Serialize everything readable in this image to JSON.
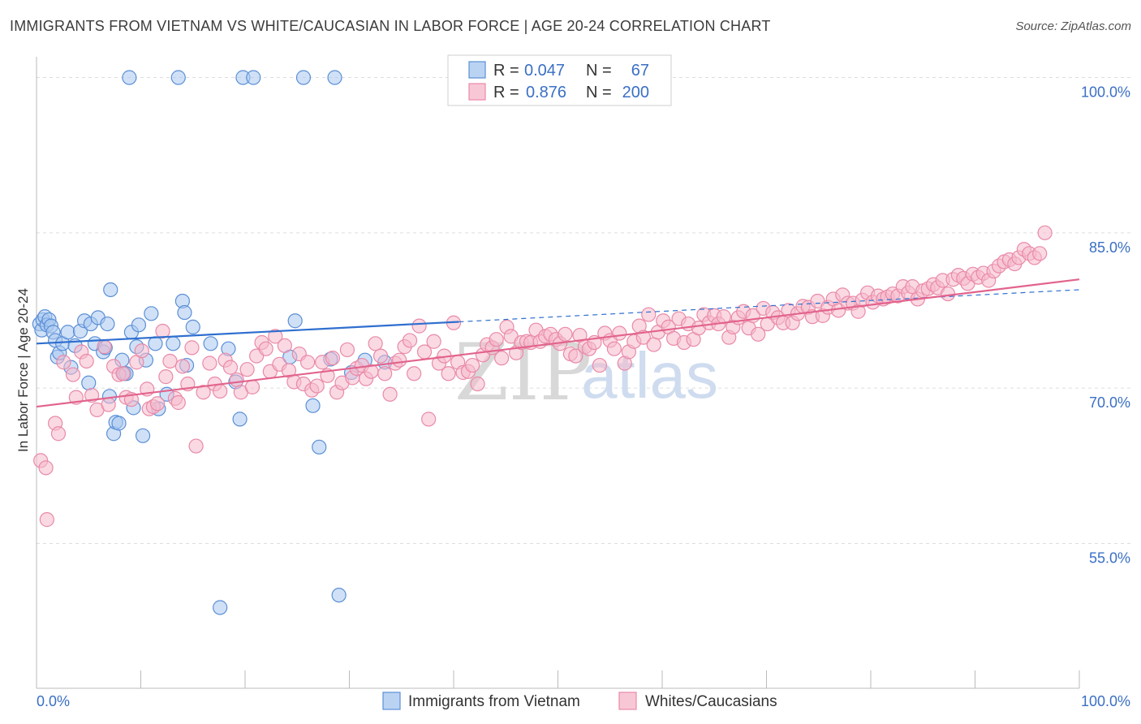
{
  "title": "IMMIGRANTS FROM VIETNAM VS WHITE/CAUCASIAN IN LABOR FORCE | AGE 20-24 CORRELATION CHART",
  "source": "Source: ZipAtlas.com",
  "watermark": {
    "zip": "ZIP",
    "atlas": "atlas"
  },
  "colors": {
    "blue_fill": "#aac8f0",
    "blue_stroke": "#5b8fd6",
    "blue_line": "#2f6fcf",
    "pink_fill": "#f6b9cc",
    "pink_stroke": "#e98aa8",
    "pink_line": "#e2638c",
    "grid": "#dddddd",
    "tick_label": "#3a6fc4"
  },
  "legend_box": {
    "rows": [
      {
        "r_label": "R =",
        "r_value": "0.047",
        "n_label": "N =",
        "n_value": "67"
      },
      {
        "r_label": "R =",
        "r_value": "0.876",
        "n_label": "N =",
        "n_value": "200"
      }
    ]
  },
  "bottom_legend": [
    "Immigrants from Vietnam",
    "Whites/Caucasians"
  ],
  "chart_data": {
    "type": "scatter",
    "ylabel": "In Labor Force | Age 20-24",
    "xlabel": "",
    "xlim": [
      0,
      100
    ],
    "ylim": [
      41,
      102
    ],
    "x_tick_labels": [
      {
        "v": 0,
        "label": "0.0%"
      },
      {
        "v": 100,
        "label": "100.0%"
      }
    ],
    "y_ticks": [
      {
        "v": 55,
        "label": "55.0%"
      },
      {
        "v": 70,
        "label": "70.0%"
      },
      {
        "v": 85,
        "label": "85.0%"
      },
      {
        "v": 100,
        "label": "100.0%"
      }
    ],
    "legend_position": "top-center",
    "grid": true,
    "series": [
      {
        "name": "Immigrants from Vietnam",
        "color": "blue",
        "trend": {
          "x0": 0,
          "y0": 74.3,
          "x1": 40.5,
          "y1": 76.4,
          "dashed_to_x": 100,
          "dashed_to_y": 79.5
        },
        "points": [
          [
            0.3,
            76.2
          ],
          [
            0.5,
            75.6
          ],
          [
            0.6,
            76.6
          ],
          [
            0.8,
            76.9
          ],
          [
            1.0,
            76.1
          ],
          [
            1.2,
            76.6
          ],
          [
            1.4,
            76.0
          ],
          [
            1.6,
            75.4
          ],
          [
            1.8,
            74.6
          ],
          [
            2.0,
            73.0
          ],
          [
            2.2,
            73.4
          ],
          [
            2.5,
            74.3
          ],
          [
            3.0,
            75.4
          ],
          [
            3.3,
            72.0
          ],
          [
            3.7,
            74.1
          ],
          [
            4.2,
            75.5
          ],
          [
            4.6,
            76.5
          ],
          [
            5.0,
            70.5
          ],
          [
            5.2,
            76.2
          ],
          [
            5.6,
            74.3
          ],
          [
            5.9,
            76.8
          ],
          [
            6.4,
            73.5
          ],
          [
            6.6,
            73.9
          ],
          [
            6.8,
            76.2
          ],
          [
            7.0,
            69.2
          ],
          [
            7.1,
            79.5
          ],
          [
            7.4,
            65.6
          ],
          [
            7.6,
            66.7
          ],
          [
            7.9,
            66.6
          ],
          [
            8.2,
            72.7
          ],
          [
            8.4,
            71.4
          ],
          [
            8.6,
            71.4
          ],
          [
            8.9,
            100.0
          ],
          [
            9.1,
            75.4
          ],
          [
            9.3,
            68.1
          ],
          [
            9.6,
            74.0
          ],
          [
            9.8,
            76.1
          ],
          [
            10.2,
            65.4
          ],
          [
            10.5,
            72.7
          ],
          [
            11.0,
            77.2
          ],
          [
            11.4,
            74.3
          ],
          [
            11.7,
            68.0
          ],
          [
            12.5,
            69.4
          ],
          [
            13.1,
            74.3
          ],
          [
            13.6,
            100.0
          ],
          [
            14.0,
            78.4
          ],
          [
            14.2,
            77.3
          ],
          [
            14.4,
            72.2
          ],
          [
            15.0,
            75.9
          ],
          [
            16.7,
            74.3
          ],
          [
            17.6,
            48.8
          ],
          [
            18.4,
            73.8
          ],
          [
            19.1,
            70.6
          ],
          [
            19.5,
            67.0
          ],
          [
            19.8,
            100.0
          ],
          [
            20.8,
            100.0
          ],
          [
            24.3,
            73.0
          ],
          [
            24.8,
            76.5
          ],
          [
            25.6,
            100.0
          ],
          [
            26.5,
            68.3
          ],
          [
            27.1,
            64.3
          ],
          [
            28.2,
            72.8
          ],
          [
            28.6,
            100.0
          ],
          [
            29.0,
            50.0
          ],
          [
            30.2,
            71.5
          ],
          [
            31.5,
            72.7
          ],
          [
            33.4,
            72.5
          ]
        ]
      },
      {
        "name": "Whites/Caucasians",
        "color": "pink",
        "trend": {
          "x0": 0,
          "y0": 68.2,
          "x1": 100,
          "y1": 80.5
        },
        "points": [
          [
            0.4,
            63.0
          ],
          [
            0.9,
            62.3
          ],
          [
            1.0,
            57.3
          ],
          [
            1.8,
            66.6
          ],
          [
            2.1,
            65.6
          ],
          [
            2.6,
            72.5
          ],
          [
            3.5,
            71.3
          ],
          [
            3.8,
            69.1
          ],
          [
            4.3,
            73.5
          ],
          [
            4.8,
            72.6
          ],
          [
            5.3,
            69.3
          ],
          [
            5.8,
            67.9
          ],
          [
            6.5,
            74.0
          ],
          [
            6.9,
            68.4
          ],
          [
            7.4,
            72.1
          ],
          [
            7.9,
            71.3
          ],
          [
            8.3,
            71.4
          ],
          [
            8.6,
            69.1
          ],
          [
            9.1,
            68.9
          ],
          [
            9.6,
            72.5
          ],
          [
            10.1,
            73.6
          ],
          [
            10.6,
            69.9
          ],
          [
            10.8,
            68.0
          ],
          [
            11.2,
            68.2
          ],
          [
            11.6,
            68.5
          ],
          [
            12.1,
            75.5
          ],
          [
            12.4,
            71.1
          ],
          [
            12.8,
            72.6
          ],
          [
            13.3,
            69.0
          ],
          [
            13.6,
            68.6
          ],
          [
            14.0,
            72.1
          ],
          [
            14.5,
            70.4
          ],
          [
            14.9,
            73.9
          ],
          [
            15.3,
            64.4
          ],
          [
            16.0,
            69.6
          ],
          [
            16.6,
            72.4
          ],
          [
            17.1,
            70.4
          ],
          [
            17.6,
            69.7
          ],
          [
            18.1,
            72.7
          ],
          [
            18.6,
            72.0
          ],
          [
            19.2,
            70.8
          ],
          [
            19.6,
            69.6
          ],
          [
            20.2,
            71.8
          ],
          [
            20.7,
            70.1
          ],
          [
            21.1,
            73.1
          ],
          [
            21.6,
            74.4
          ],
          [
            22.0,
            73.8
          ],
          [
            22.4,
            71.6
          ],
          [
            22.9,
            75.0
          ],
          [
            23.3,
            72.3
          ],
          [
            23.8,
            74.1
          ],
          [
            24.2,
            71.7
          ],
          [
            24.7,
            70.6
          ],
          [
            25.2,
            73.3
          ],
          [
            25.6,
            70.4
          ],
          [
            26.0,
            72.5
          ],
          [
            26.4,
            69.8
          ],
          [
            26.9,
            70.2
          ],
          [
            27.4,
            72.5
          ],
          [
            27.9,
            71.2
          ],
          [
            28.4,
            72.9
          ],
          [
            28.8,
            69.6
          ],
          [
            29.3,
            70.5
          ],
          [
            29.8,
            73.7
          ],
          [
            30.3,
            71.0
          ],
          [
            30.7,
            71.9
          ],
          [
            31.2,
            72.2
          ],
          [
            31.6,
            70.9
          ],
          [
            32.1,
            71.6
          ],
          [
            32.5,
            74.3
          ],
          [
            33.0,
            73.1
          ],
          [
            33.4,
            71.4
          ],
          [
            33.9,
            69.4
          ],
          [
            34.4,
            72.4
          ],
          [
            34.8,
            72.7
          ],
          [
            35.3,
            74.0
          ],
          [
            35.8,
            74.6
          ],
          [
            36.2,
            71.4
          ],
          [
            36.7,
            76.0
          ],
          [
            37.2,
            73.5
          ],
          [
            37.6,
            67.0
          ],
          [
            38.1,
            74.5
          ],
          [
            38.6,
            72.4
          ],
          [
            39.1,
            73.1
          ],
          [
            39.5,
            71.4
          ],
          [
            40.0,
            76.3
          ],
          [
            40.4,
            72.5
          ],
          [
            40.9,
            71.5
          ],
          [
            41.4,
            71.6
          ],
          [
            41.8,
            72.2
          ],
          [
            42.3,
            70.4
          ],
          [
            42.8,
            73.2
          ],
          [
            43.2,
            74.2
          ],
          [
            43.7,
            73.9
          ],
          [
            44.1,
            74.7
          ],
          [
            44.6,
            72.9
          ],
          [
            45.1,
            75.9
          ],
          [
            45.5,
            75.0
          ],
          [
            46.0,
            73.4
          ],
          [
            46.5,
            74.4
          ],
          [
            47.0,
            74.5
          ],
          [
            47.4,
            74.4
          ],
          [
            47.9,
            75.6
          ],
          [
            48.3,
            74.5
          ],
          [
            48.8,
            75.0
          ],
          [
            49.3,
            75.2
          ],
          [
            49.8,
            74.7
          ],
          [
            50.2,
            74.3
          ],
          [
            50.7,
            75.2
          ],
          [
            51.2,
            73.3
          ],
          [
            51.7,
            73.1
          ],
          [
            52.1,
            75.1
          ],
          [
            52.6,
            74.0
          ],
          [
            53.0,
            73.8
          ],
          [
            53.5,
            74.4
          ],
          [
            54.0,
            72.2
          ],
          [
            54.5,
            75.3
          ],
          [
            55.0,
            74.6
          ],
          [
            55.4,
            73.8
          ],
          [
            55.9,
            75.3
          ],
          [
            56.4,
            72.4
          ],
          [
            56.8,
            73.5
          ],
          [
            57.3,
            74.5
          ],
          [
            57.8,
            76.0
          ],
          [
            58.2,
            74.9
          ],
          [
            58.7,
            77.1
          ],
          [
            59.2,
            74.2
          ],
          [
            59.6,
            75.4
          ],
          [
            60.1,
            76.5
          ],
          [
            60.6,
            75.9
          ],
          [
            61.1,
            74.8
          ],
          [
            61.6,
            76.7
          ],
          [
            62.1,
            74.4
          ],
          [
            62.5,
            76.2
          ],
          [
            63.0,
            74.7
          ],
          [
            63.5,
            75.8
          ],
          [
            64.0,
            77.1
          ],
          [
            64.5,
            76.3
          ],
          [
            65.0,
            77.0
          ],
          [
            65.4,
            76.2
          ],
          [
            65.9,
            76.9
          ],
          [
            66.4,
            74.9
          ],
          [
            66.8,
            75.9
          ],
          [
            67.3,
            76.8
          ],
          [
            67.8,
            77.4
          ],
          [
            68.3,
            75.8
          ],
          [
            68.7,
            77.0
          ],
          [
            69.2,
            75.2
          ],
          [
            69.7,
            77.7
          ],
          [
            70.1,
            76.2
          ],
          [
            70.6,
            77.3
          ],
          [
            71.1,
            76.8
          ],
          [
            71.6,
            76.3
          ],
          [
            72.1,
            77.5
          ],
          [
            72.5,
            76.3
          ],
          [
            73.0,
            77.2
          ],
          [
            73.5,
            77.9
          ],
          [
            74.0,
            77.8
          ],
          [
            74.4,
            76.9
          ],
          [
            74.9,
            78.4
          ],
          [
            75.4,
            77.0
          ],
          [
            75.9,
            77.8
          ],
          [
            76.4,
            78.6
          ],
          [
            76.9,
            77.5
          ],
          [
            77.3,
            79.0
          ],
          [
            77.8,
            78.2
          ],
          [
            78.3,
            78.2
          ],
          [
            78.8,
            77.4
          ],
          [
            79.2,
            78.5
          ],
          [
            79.7,
            79.2
          ],
          [
            80.2,
            78.3
          ],
          [
            80.7,
            78.9
          ],
          [
            81.2,
            78.6
          ],
          [
            81.6,
            78.8
          ],
          [
            82.1,
            79.1
          ],
          [
            82.6,
            78.9
          ],
          [
            83.1,
            79.8
          ],
          [
            83.6,
            79.2
          ],
          [
            84.0,
            79.8
          ],
          [
            84.5,
            78.6
          ],
          [
            85.0,
            79.4
          ],
          [
            85.5,
            79.6
          ],
          [
            86.0,
            80.0
          ],
          [
            86.4,
            79.7
          ],
          [
            86.9,
            80.4
          ],
          [
            87.4,
            79.1
          ],
          [
            87.9,
            80.5
          ],
          [
            88.4,
            80.9
          ],
          [
            88.9,
            80.6
          ],
          [
            89.3,
            80.1
          ],
          [
            89.8,
            81.0
          ],
          [
            90.3,
            80.7
          ],
          [
            90.8,
            81.1
          ],
          [
            91.3,
            80.4
          ],
          [
            91.8,
            81.3
          ],
          [
            92.3,
            81.8
          ],
          [
            92.8,
            82.2
          ],
          [
            93.3,
            82.4
          ],
          [
            93.8,
            82.0
          ],
          [
            94.2,
            82.6
          ],
          [
            94.7,
            83.4
          ],
          [
            95.2,
            83.0
          ],
          [
            95.7,
            82.6
          ],
          [
            96.2,
            83.0
          ],
          [
            96.7,
            85.0
          ]
        ]
      }
    ]
  }
}
